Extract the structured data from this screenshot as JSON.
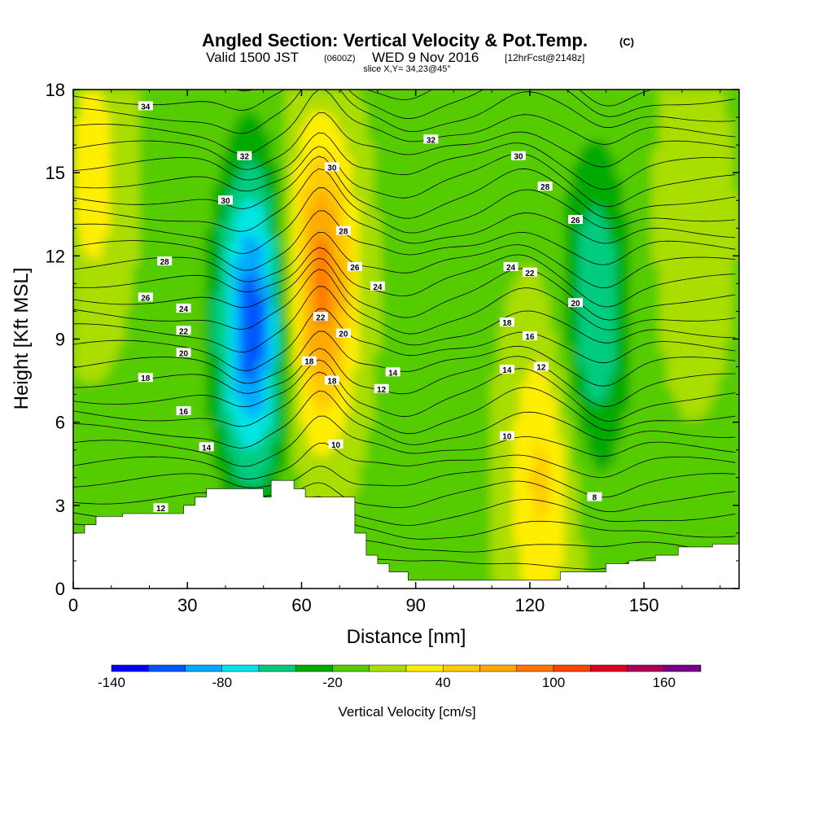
{
  "header": {
    "title": "Angled Section: Vertical Velocity & Pot.Temp.",
    "title_units": "(C)",
    "valid_prefix": "Valid 1500 JST",
    "valid_z": "(0600Z)",
    "valid_date": "WED 9 Nov 2016",
    "valid_fcst": "[12hrFcst@2148z]",
    "slice": "slice X,Y= 34,23@45°"
  },
  "chart_data": {
    "type": "heatmap",
    "xlabel": "Distance [nm]",
    "ylabel": "Height [Kft MSL]",
    "xlim": [
      0,
      175
    ],
    "ylim": [
      0,
      18
    ],
    "x_ticks": [
      "0",
      "30",
      "60",
      "90",
      "120",
      "150"
    ],
    "y_ticks": [
      "0",
      "3",
      "6",
      "9",
      "12",
      "15",
      "18"
    ],
    "colorbar": {
      "label": "Vertical Velocity [cm/s]",
      "ticks": [
        "-140",
        "-80",
        "-20",
        "40",
        "100",
        "160"
      ],
      "min": -140,
      "max": 180,
      "step": 20,
      "colors": [
        "#0000ff",
        "#0055ff",
        "#00aaff",
        "#00e5e5",
        "#00cc80",
        "#00aa00",
        "#55cc00",
        "#aadd00",
        "#ffee00",
        "#ffcc00",
        "#ffaa00",
        "#ff7700",
        "#ff4400",
        "#dd0022",
        "#aa0055",
        "#770088"
      ]
    },
    "cores": [
      {
        "x": 47,
        "y": 9.5,
        "value": -110
      },
      {
        "x": 65,
        "y": 11,
        "value": 95
      },
      {
        "x": 123,
        "y": 4,
        "value": 50
      },
      {
        "x": 137,
        "y": 10,
        "value": -55
      },
      {
        "x": 163,
        "y": 13,
        "value": 25
      },
      {
        "x": 5,
        "y": 15,
        "value": 35
      }
    ],
    "theta_contour_labels": [
      {
        "x": 19,
        "y": 17.4,
        "label": "34"
      },
      {
        "x": 45,
        "y": 15.6,
        "label": "32"
      },
      {
        "x": 40,
        "y": 14.0,
        "label": "30"
      },
      {
        "x": 24,
        "y": 11.8,
        "label": "28"
      },
      {
        "x": 19,
        "y": 10.5,
        "label": "26"
      },
      {
        "x": 29,
        "y": 10.1,
        "label": "24"
      },
      {
        "x": 29,
        "y": 9.3,
        "label": "22"
      },
      {
        "x": 29,
        "y": 8.5,
        "label": "20"
      },
      {
        "x": 19,
        "y": 7.6,
        "label": "18"
      },
      {
        "x": 29,
        "y": 6.4,
        "label": "16"
      },
      {
        "x": 35,
        "y": 5.1,
        "label": "14"
      },
      {
        "x": 23,
        "y": 2.9,
        "label": "12"
      },
      {
        "x": 68,
        "y": 15.2,
        "label": "30"
      },
      {
        "x": 71,
        "y": 12.9,
        "label": "28"
      },
      {
        "x": 74,
        "y": 11.6,
        "label": "26"
      },
      {
        "x": 80,
        "y": 10.9,
        "label": "24"
      },
      {
        "x": 65,
        "y": 9.8,
        "label": "22"
      },
      {
        "x": 71,
        "y": 9.2,
        "label": "20"
      },
      {
        "x": 62,
        "y": 8.2,
        "label": "18"
      },
      {
        "x": 68,
        "y": 7.5,
        "label": "18"
      },
      {
        "x": 84,
        "y": 7.8,
        "label": "14"
      },
      {
        "x": 81,
        "y": 7.2,
        "label": "12"
      },
      {
        "x": 69,
        "y": 5.2,
        "label": "10"
      },
      {
        "x": 94,
        "y": 16.2,
        "label": "32"
      },
      {
        "x": 117,
        "y": 15.6,
        "label": "30"
      },
      {
        "x": 124,
        "y": 14.5,
        "label": "28"
      },
      {
        "x": 132,
        "y": 13.3,
        "label": "26"
      },
      {
        "x": 115,
        "y": 11.6,
        "label": "24"
      },
      {
        "x": 120,
        "y": 11.4,
        "label": "22"
      },
      {
        "x": 132,
        "y": 10.3,
        "label": "20"
      },
      {
        "x": 114,
        "y": 9.6,
        "label": "18"
      },
      {
        "x": 120,
        "y": 9.1,
        "label": "16"
      },
      {
        "x": 114,
        "y": 7.9,
        "label": "14"
      },
      {
        "x": 123,
        "y": 8.0,
        "label": "12"
      },
      {
        "x": 114,
        "y": 5.5,
        "label": "10"
      },
      {
        "x": 137,
        "y": 3.3,
        "label": "8"
      }
    ],
    "terrain": [
      [
        0,
        2.0
      ],
      [
        3,
        2.0
      ],
      [
        3,
        2.3
      ],
      [
        6,
        2.3
      ],
      [
        6,
        2.6
      ],
      [
        13,
        2.6
      ],
      [
        13,
        2.7
      ],
      [
        29,
        2.7
      ],
      [
        29,
        3.0
      ],
      [
        32,
        3.0
      ],
      [
        32,
        3.3
      ],
      [
        35,
        3.3
      ],
      [
        35,
        3.6
      ],
      [
        50,
        3.6
      ],
      [
        50,
        3.3
      ],
      [
        52,
        3.3
      ],
      [
        52,
        3.9
      ],
      [
        58,
        3.9
      ],
      [
        58,
        3.6
      ],
      [
        61,
        3.6
      ],
      [
        61,
        3.3
      ],
      [
        74,
        3.3
      ],
      [
        74,
        2.0
      ],
      [
        77,
        2.0
      ],
      [
        77,
        1.2
      ],
      [
        80,
        1.2
      ],
      [
        80,
        0.9
      ],
      [
        83,
        0.9
      ],
      [
        83,
        0.6
      ],
      [
        88,
        0.6
      ],
      [
        88,
        0.3
      ],
      [
        128,
        0.3
      ],
      [
        128,
        0.6
      ],
      [
        140,
        0.6
      ],
      [
        140,
        0.9
      ],
      [
        146,
        0.9
      ],
      [
        146,
        1.0
      ],
      [
        153,
        1.0
      ],
      [
        153,
        1.2
      ],
      [
        159,
        1.2
      ],
      [
        159,
        1.5
      ],
      [
        168,
        1.5
      ],
      [
        168,
        1.6
      ],
      [
        175,
        1.6
      ]
    ]
  }
}
